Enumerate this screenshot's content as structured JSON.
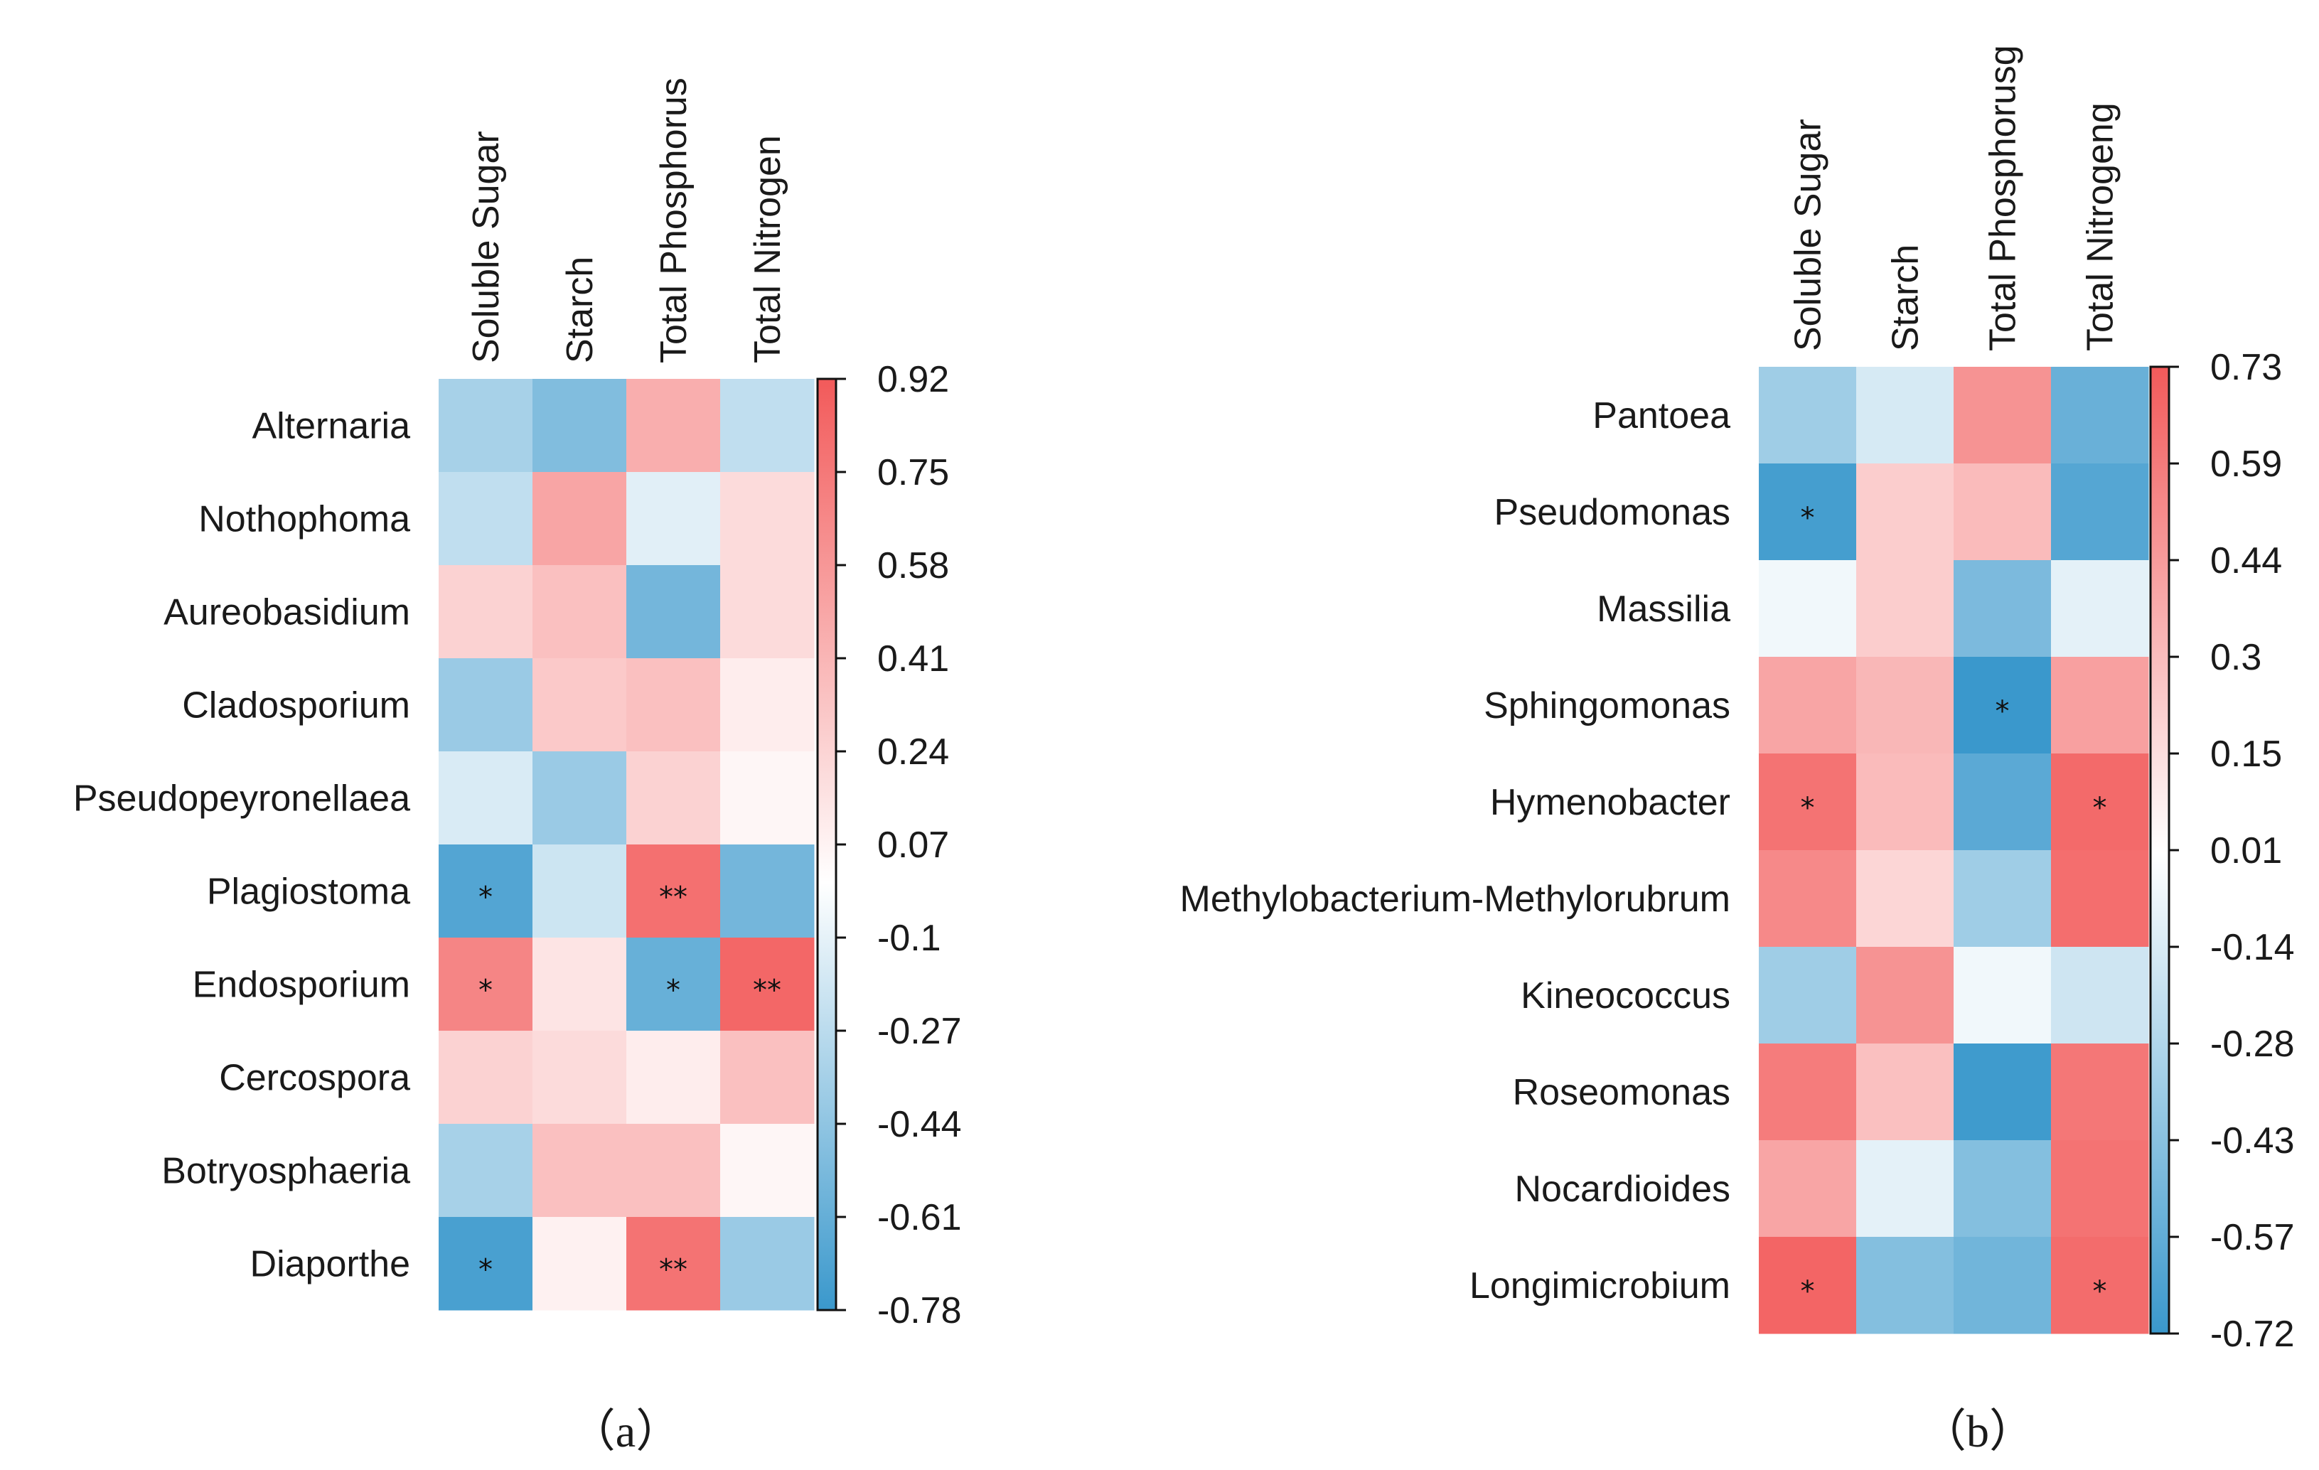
{
  "chart_data": [
    {
      "panel": "(a)",
      "type": "heatmap",
      "title": "",
      "caption": "（a）",
      "columns": [
        "Soluble Sugar",
        "Starch",
        "Total Phosphorus",
        "Total Nitrogen"
      ],
      "rows": [
        "Alternaria",
        "Nothophoma",
        "Aureobasidium",
        "Cladosporium",
        "Pseudopeyronellaea",
        "Plagiostoma",
        "Endosporium",
        "Cercospora",
        "Botryosphaeria",
        "Diaporthe"
      ],
      "values": [
        [
          -0.35,
          -0.5,
          0.45,
          -0.25
        ],
        [
          -0.25,
          0.5,
          -0.12,
          0.2
        ],
        [
          0.25,
          0.35,
          -0.55,
          0.2
        ],
        [
          -0.4,
          0.3,
          0.35,
          0.1
        ],
        [
          -0.15,
          -0.4,
          0.25,
          0.05
        ],
        [
          -0.68,
          -0.2,
          0.8,
          -0.55
        ],
        [
          0.68,
          0.15,
          -0.6,
          0.85
        ],
        [
          0.25,
          0.2,
          0.1,
          0.35
        ],
        [
          -0.35,
          0.35,
          0.35,
          0.05
        ],
        [
          -0.72,
          0.08,
          0.78,
          -0.4
        ]
      ],
      "significance": [
        [
          "",
          "",
          "",
          ""
        ],
        [
          "",
          "",
          "",
          ""
        ],
        [
          "",
          "",
          "",
          ""
        ],
        [
          "",
          "",
          "",
          ""
        ],
        [
          "",
          "",
          "",
          ""
        ],
        [
          "*",
          "",
          "**",
          ""
        ],
        [
          "*",
          "",
          "*",
          "**"
        ],
        [
          "",
          "",
          "",
          ""
        ],
        [
          "",
          "",
          "",
          ""
        ],
        [
          "*",
          "",
          "**",
          ""
        ]
      ],
      "colorbar": {
        "min": -0.78,
        "max": 0.92,
        "ticks": [
          "0.92",
          "0.75",
          "0.58",
          "0.41",
          "0.24",
          "0.07",
          "-0.1",
          "-0.27",
          "-0.44",
          "-0.61",
          "-0.78"
        ],
        "low_color": "#3a98cc",
        "mid_color": "#ffffff",
        "high_color": "#f25a5a"
      }
    },
    {
      "panel": "(b)",
      "type": "heatmap",
      "title": "",
      "caption": "（b）",
      "columns": [
        "Soluble Sugar",
        "Starch",
        "Total Phosphorusg",
        "Total Nitrogeng"
      ],
      "rows": [
        "Pantoea",
        "Pseudomonas",
        "Massilia",
        "Sphingomonas",
        "Hymenobacter",
        "Methylobacterium-Methylorubrum",
        "Kineococcus",
        "Roseomonas",
        "Nocardioides",
        "Longimicrobium"
      ],
      "values": [
        [
          -0.35,
          -0.15,
          0.48,
          -0.55
        ],
        [
          -0.68,
          0.22,
          0.3,
          -0.62
        ],
        [
          -0.05,
          0.22,
          -0.48,
          -0.1
        ],
        [
          0.4,
          0.32,
          -0.72,
          0.42
        ],
        [
          0.62,
          0.3,
          -0.6,
          0.66
        ],
        [
          0.52,
          0.18,
          -0.35,
          0.64
        ],
        [
          -0.35,
          0.48,
          -0.05,
          -0.18
        ],
        [
          0.58,
          0.28,
          -0.7,
          0.6
        ],
        [
          0.4,
          -0.1,
          -0.45,
          0.62
        ],
        [
          0.68,
          -0.45,
          -0.52,
          0.65
        ]
      ],
      "significance": [
        [
          "",
          "",
          "",
          ""
        ],
        [
          "*",
          "",
          "",
          ""
        ],
        [
          "",
          "",
          "",
          ""
        ],
        [
          "",
          "",
          "*",
          ""
        ],
        [
          "*",
          "",
          "",
          "*"
        ],
        [
          "",
          "",
          "",
          ""
        ],
        [
          "",
          "",
          "",
          ""
        ],
        [
          "",
          "",
          "",
          ""
        ],
        [
          "",
          "",
          "",
          ""
        ],
        [
          "*",
          "",
          "",
          "*"
        ]
      ],
      "colorbar": {
        "min": -0.72,
        "max": 0.73,
        "ticks": [
          "0.73",
          "0.59",
          "0.44",
          "0.3",
          "0.15",
          "0.01",
          "-0.14",
          "-0.28",
          "-0.43",
          "-0.57",
          "-0.72"
        ],
        "low_color": "#3a98cc",
        "mid_color": "#ffffff",
        "high_color": "#f25a5a"
      }
    }
  ]
}
